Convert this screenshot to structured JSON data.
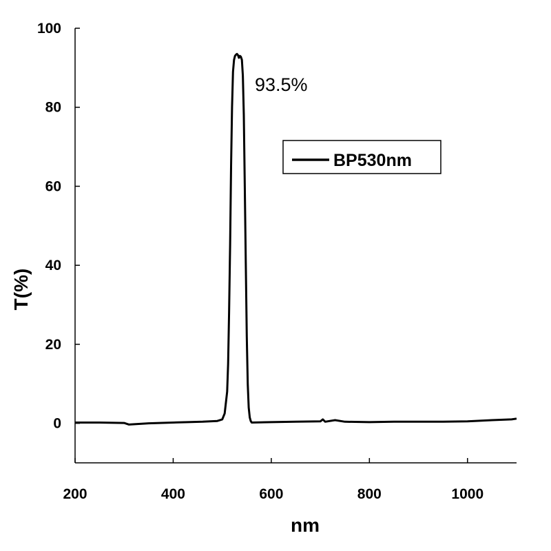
{
  "chart_data": {
    "type": "line",
    "title": "",
    "xlabel": "nm",
    "ylabel": "T(%)",
    "xlim": [
      200,
      1100
    ],
    "ylim": [
      -10,
      100
    ],
    "xticks": [
      200,
      400,
      600,
      800,
      1000
    ],
    "yticks": [
      0,
      20,
      40,
      60,
      80,
      100
    ],
    "xtick_labels": [
      "200",
      "400",
      "600",
      "800",
      "1000"
    ],
    "ytick_labels": [
      "0",
      "20",
      "40",
      "60",
      "80",
      "100"
    ],
    "grid": false,
    "legend_position": "upper-right",
    "annotations": [
      {
        "text": "93.5%",
        "x": 536,
        "y": 93.5
      }
    ],
    "series": [
      {
        "name": "BP530nm",
        "color": "#000000",
        "x": [
          200,
          250,
          300,
          310,
          350,
          400,
          430,
          460,
          490,
          500,
          505,
          510,
          512,
          514,
          516,
          518,
          520,
          522,
          524,
          526,
          528,
          530,
          532,
          534,
          536,
          538,
          540,
          542,
          544,
          546,
          548,
          550,
          552,
          554,
          556,
          558,
          560,
          600,
          650,
          700,
          705,
          710,
          730,
          750,
          800,
          850,
          900,
          950,
          1000,
          1050,
          1090,
          1100
        ],
        "y": [
          0.2,
          0.2,
          0.1,
          -0.3,
          0,
          0.2,
          0.3,
          0.4,
          0.6,
          1.0,
          2.5,
          8,
          15,
          28,
          45,
          65,
          80,
          89,
          92,
          93,
          93.3,
          93.5,
          93.2,
          92.5,
          93,
          92.8,
          92,
          88,
          78,
          60,
          40,
          22,
          10,
          4,
          1.5,
          0.6,
          0.2,
          0.3,
          0.4,
          0.5,
          1.0,
          0.4,
          0.8,
          0.4,
          0.3,
          0.4,
          0.4,
          0.4,
          0.5,
          0.8,
          1.0,
          1.2
        ]
      }
    ]
  }
}
